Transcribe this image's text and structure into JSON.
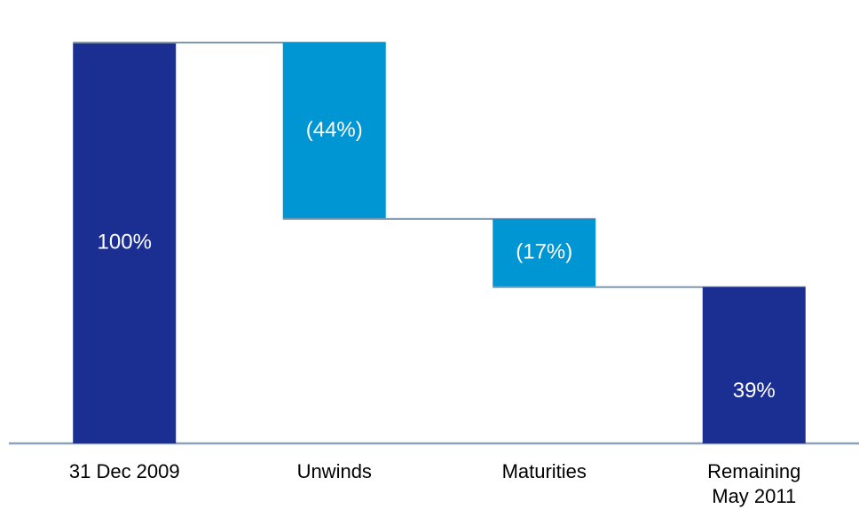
{
  "chart_data": {
    "type": "waterfall",
    "categories": [
      "31 Dec 2009",
      "Unwinds",
      "Maturities",
      "Remaining May 2011"
    ],
    "values": [
      100,
      -44,
      -17,
      39
    ],
    "value_labels": [
      "100%",
      "(44%)",
      "(17%)",
      "39%"
    ],
    "colors": [
      "#1b2f93",
      "#0095d3",
      "#0095d3",
      "#1b2f93"
    ]
  }
}
